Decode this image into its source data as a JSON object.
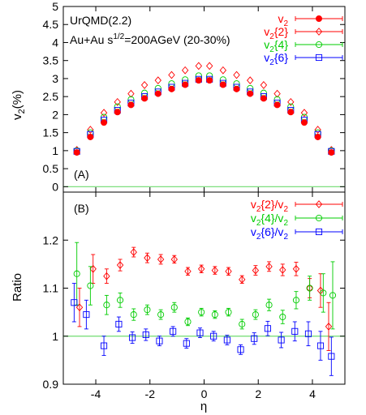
{
  "chart_data": [
    {
      "type": "scatter",
      "panel_label": "(A)",
      "annotation_model": "UrQMD(2.2)",
      "annotation_system": {
        "prefix": "Au+Au s",
        "superscript": "1/2",
        "suffix": "=200AGeV (20-30%)"
      },
      "ylabel": {
        "main": "v",
        "sub": "2",
        "tail": "(%)"
      },
      "xlim": [
        -5.2,
        5.2
      ],
      "ylim": [
        -0.15,
        5.0
      ],
      "yticks": [
        0,
        0.5,
        1,
        1.5,
        2,
        2.5,
        3,
        3.5,
        4,
        4.5,
        5
      ],
      "ytick_labels": [
        "0",
        "0.5",
        "1",
        "1.5",
        "2",
        "2.5",
        "3",
        "3.5",
        "4",
        "4.5",
        "5"
      ],
      "reference_line": 0,
      "legend_position": "top-right",
      "x": [
        -4.7,
        -4.2,
        -3.7,
        -3.2,
        -2.7,
        -2.2,
        -1.7,
        -1.2,
        -0.7,
        -0.2,
        0.2,
        0.7,
        1.2,
        1.7,
        2.2,
        2.7,
        3.2,
        3.7,
        4.2,
        4.7
      ],
      "series": [
        {
          "name": {
            "main": "v",
            "sub": "2",
            "tail": ""
          },
          "color": "#ff0000",
          "marker": "filled-circle",
          "values": [
            0.95,
            1.38,
            1.78,
            2.07,
            2.27,
            2.45,
            2.58,
            2.71,
            2.83,
            2.95,
            2.95,
            2.83,
            2.71,
            2.58,
            2.45,
            2.27,
            2.07,
            1.78,
            1.38,
            0.95
          ]
        },
        {
          "name": {
            "main": "v",
            "sub": "2",
            "tail": "{2}"
          },
          "color": "#ff0000",
          "marker": "open-diamond",
          "values": [
            1.02,
            1.58,
            2.05,
            2.35,
            2.58,
            2.82,
            2.95,
            3.1,
            3.23,
            3.35,
            3.35,
            3.23,
            3.1,
            2.95,
            2.82,
            2.58,
            2.35,
            2.05,
            1.58,
            1.02
          ]
        },
        {
          "name": {
            "main": "v",
            "sub": "2",
            "tail": "{4}"
          },
          "color": "#00cc00",
          "marker": "open-circle",
          "values": [
            1.0,
            1.5,
            1.93,
            2.22,
            2.42,
            2.6,
            2.73,
            2.86,
            2.97,
            3.08,
            3.08,
            2.97,
            2.86,
            2.73,
            2.6,
            2.42,
            2.22,
            1.93,
            1.5,
            1.0
          ]
        },
        {
          "name": {
            "main": "v",
            "sub": "2",
            "tail": "{6}"
          },
          "color": "#0000ff",
          "marker": "open-square",
          "values": [
            0.98,
            1.45,
            1.85,
            2.12,
            2.32,
            2.5,
            2.63,
            2.76,
            2.87,
            2.98,
            2.98,
            2.87,
            2.76,
            2.63,
            2.5,
            2.32,
            2.12,
            1.85,
            1.45,
            0.98
          ]
        }
      ]
    },
    {
      "type": "scatter",
      "panel_label": "(B)",
      "ylabel": "Ratio",
      "xlabel": "η",
      "xlim": [
        -5.2,
        5.2
      ],
      "ylim": [
        0.9,
        1.3
      ],
      "xticks": [
        -4,
        -2,
        0,
        2,
        4
      ],
      "xtick_labels": [
        "-4",
        "-2",
        "0",
        "2",
        "4"
      ],
      "yticks": [
        0.9,
        1.0,
        1.1,
        1.2
      ],
      "ytick_labels": [
        "0.9",
        "1",
        "1.1",
        "1.2"
      ],
      "reference_line": 1,
      "legend_position": "top-right",
      "series": [
        {
          "name": {
            "main": "v",
            "sub": "2",
            "tail": "{2}/v",
            "sub2": "2"
          },
          "color": "#ff0000",
          "marker": "open-diamond",
          "points": [
            [
              -4.6,
              1.06,
              0.04
            ],
            [
              -4.1,
              1.14,
              0.03
            ],
            [
              -3.6,
              1.125,
              0.015
            ],
            [
              -3.1,
              1.148,
              0.012
            ],
            [
              -2.6,
              1.175,
              0.01
            ],
            [
              -2.1,
              1.163,
              0.01
            ],
            [
              -1.6,
              1.16,
              0.01
            ],
            [
              -1.1,
              1.16,
              0.008
            ],
            [
              -0.6,
              1.135,
              0.008
            ],
            [
              -0.1,
              1.14,
              0.008
            ],
            [
              0.4,
              1.137,
              0.008
            ],
            [
              0.9,
              1.135,
              0.008
            ],
            [
              1.4,
              1.118,
              0.008
            ],
            [
              1.9,
              1.137,
              0.01
            ],
            [
              2.4,
              1.145,
              0.01
            ],
            [
              2.9,
              1.138,
              0.012
            ],
            [
              3.4,
              1.14,
              0.014
            ],
            [
              3.9,
              1.1,
              0.02
            ],
            [
              4.3,
              1.095,
              0.035
            ],
            [
              4.6,
              1.02,
              0.05
            ]
          ]
        },
        {
          "name": {
            "main": "v",
            "sub": "2",
            "tail": "{4}/v",
            "sub2": "2"
          },
          "color": "#00cc00",
          "marker": "open-circle",
          "points": [
            [
              -4.7,
              1.13,
              0.065
            ],
            [
              -4.2,
              1.105,
              0.04
            ],
            [
              -3.6,
              1.065,
              0.02
            ],
            [
              -3.1,
              1.075,
              0.015
            ],
            [
              -2.6,
              1.045,
              0.012
            ],
            [
              -2.1,
              1.055,
              0.01
            ],
            [
              -1.6,
              1.045,
              0.01
            ],
            [
              -1.1,
              1.06,
              0.01
            ],
            [
              -0.6,
              1.03,
              0.008
            ],
            [
              -0.1,
              1.05,
              0.008
            ],
            [
              0.4,
              1.045,
              0.008
            ],
            [
              0.9,
              1.05,
              0.008
            ],
            [
              1.4,
              1.025,
              0.01
            ],
            [
              1.9,
              1.045,
              0.01
            ],
            [
              2.4,
              1.065,
              0.012
            ],
            [
              2.9,
              1.04,
              0.014
            ],
            [
              3.4,
              1.075,
              0.018
            ],
            [
              3.9,
              1.1,
              0.025
            ],
            [
              4.4,
              1.09,
              0.04
            ],
            [
              4.75,
              1.085,
              0.07
            ]
          ]
        },
        {
          "name": {
            "main": "v",
            "sub": "2",
            "tail": "{6}/v",
            "sub2": "2"
          },
          "color": "#0000ff",
          "marker": "open-square",
          "points": [
            [
              -4.8,
              1.07,
              0.04
            ],
            [
              -4.35,
              1.045,
              0.03
            ],
            [
              -3.7,
              0.98,
              0.02
            ],
            [
              -3.15,
              1.025,
              0.015
            ],
            [
              -2.65,
              0.997,
              0.012
            ],
            [
              -2.15,
              1.003,
              0.012
            ],
            [
              -1.65,
              0.99,
              0.01
            ],
            [
              -1.15,
              1.01,
              0.01
            ],
            [
              -0.65,
              0.985,
              0.01
            ],
            [
              -0.15,
              1.007,
              0.01
            ],
            [
              0.35,
              1.0,
              0.01
            ],
            [
              0.85,
              0.992,
              0.01
            ],
            [
              1.35,
              0.972,
              0.01
            ],
            [
              1.85,
              0.995,
              0.012
            ],
            [
              2.35,
              1.016,
              0.015
            ],
            [
              2.85,
              0.992,
              0.016
            ],
            [
              3.35,
              1.01,
              0.02
            ],
            [
              3.85,
              1.005,
              0.025
            ],
            [
              4.3,
              0.98,
              0.03
            ],
            [
              4.7,
              0.958,
              0.04
            ]
          ]
        }
      ]
    }
  ]
}
